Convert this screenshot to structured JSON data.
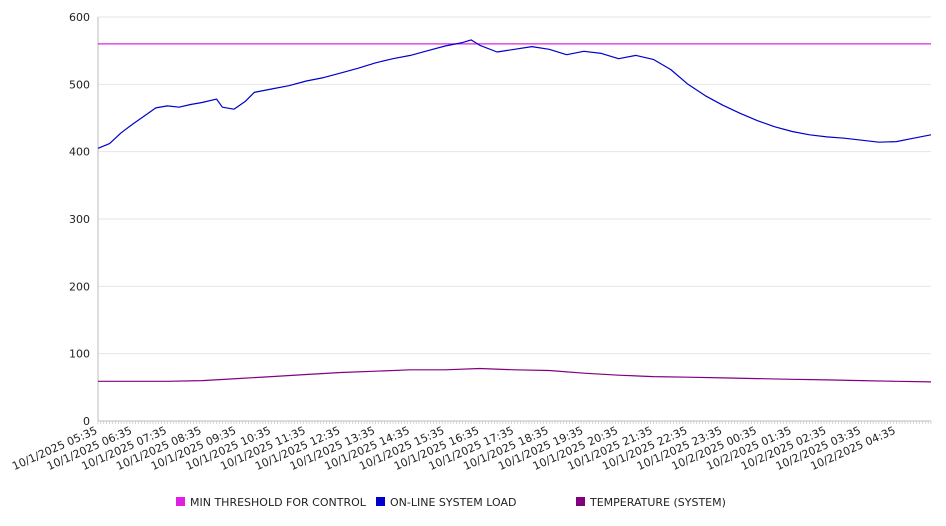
{
  "chart_data": {
    "type": "line",
    "title": "",
    "xlabel": "",
    "ylabel": "",
    "ylim": [
      0,
      600
    ],
    "yticks": [
      0,
      100,
      200,
      300,
      400,
      500,
      600
    ],
    "grid": true,
    "legend_position": "bottom",
    "x_tick_labels": [
      "10/1/2025 05:35",
      "10/1/2025 06:35",
      "10/1/2025 07:35",
      "10/1/2025 08:35",
      "10/1/2025 09:35",
      "10/1/2025 10:35",
      "10/1/2025 11:35",
      "10/1/2025 12:35",
      "10/1/2025 13:35",
      "10/1/2025 14:35",
      "10/1/2025 15:35",
      "10/1/2025 16:35",
      "10/1/2025 17:35",
      "10/1/2025 18:35",
      "10/1/2025 19:35",
      "10/1/2025 20:35",
      "10/1/2025 21:35",
      "10/1/2025 22:35",
      "10/1/2025 23:35",
      "10/2/2025 00:35",
      "10/2/2025 01:35",
      "10/2/2025 02:35",
      "10/2/2025 03:35",
      "10/2/2025 04:35"
    ],
    "x_range": [
      "10/1/2025 05:35",
      "10/2/2025 05:35"
    ],
    "series": [
      {
        "name": "MIN THRESHOLD FOR CONTROL",
        "color": "#e020e0",
        "points": [
          [
            "10/1/2025 05:35",
            560
          ],
          [
            "10/2/2025 05:35",
            560
          ]
        ]
      },
      {
        "name": "ON-LINE SYSTEM LOAD",
        "color": "#0000cc",
        "points": [
          [
            "10/1/2025 05:35",
            405
          ],
          [
            "10/1/2025 05:55",
            412
          ],
          [
            "10/1/2025 06:15",
            428
          ],
          [
            "10/1/2025 06:35",
            441
          ],
          [
            "10/1/2025 06:55",
            453
          ],
          [
            "10/1/2025 07:15",
            465
          ],
          [
            "10/1/2025 07:35",
            468
          ],
          [
            "10/1/2025 07:55",
            466
          ],
          [
            "10/1/2025 08:15",
            470
          ],
          [
            "10/1/2025 08:35",
            473
          ],
          [
            "10/1/2025 09:00",
            478
          ],
          [
            "10/1/2025 09:10",
            466
          ],
          [
            "10/1/2025 09:30",
            463
          ],
          [
            "10/1/2025 09:50",
            475
          ],
          [
            "10/1/2025 10:05",
            488
          ],
          [
            "10/1/2025 10:35",
            493
          ],
          [
            "10/1/2025 11:05",
            498
          ],
          [
            "10/1/2025 11:35",
            505
          ],
          [
            "10/1/2025 12:05",
            510
          ],
          [
            "10/1/2025 12:35",
            517
          ],
          [
            "10/1/2025 13:05",
            524
          ],
          [
            "10/1/2025 13:35",
            532
          ],
          [
            "10/1/2025 14:05",
            538
          ],
          [
            "10/1/2025 14:35",
            543
          ],
          [
            "10/1/2025 15:05",
            550
          ],
          [
            "10/1/2025 15:35",
            557
          ],
          [
            "10/1/2025 16:05",
            562
          ],
          [
            "10/1/2025 16:20",
            566
          ],
          [
            "10/1/2025 16:35",
            558
          ],
          [
            "10/1/2025 17:05",
            548
          ],
          [
            "10/1/2025 17:35",
            552
          ],
          [
            "10/1/2025 18:05",
            556
          ],
          [
            "10/1/2025 18:35",
            552
          ],
          [
            "10/1/2025 19:05",
            544
          ],
          [
            "10/1/2025 19:35",
            549
          ],
          [
            "10/1/2025 20:05",
            546
          ],
          [
            "10/1/2025 20:35",
            538
          ],
          [
            "10/1/2025 21:05",
            543
          ],
          [
            "10/1/2025 21:35",
            537
          ],
          [
            "10/1/2025 22:05",
            522
          ],
          [
            "10/1/2025 22:35",
            500
          ],
          [
            "10/1/2025 23:05",
            483
          ],
          [
            "10/1/2025 23:35",
            469
          ],
          [
            "10/2/2025 00:05",
            457
          ],
          [
            "10/2/2025 00:35",
            446
          ],
          [
            "10/2/2025 01:05",
            437
          ],
          [
            "10/2/2025 01:35",
            430
          ],
          [
            "10/2/2025 02:05",
            425
          ],
          [
            "10/2/2025 02:35",
            422
          ],
          [
            "10/2/2025 03:05",
            420
          ],
          [
            "10/2/2025 03:35",
            417
          ],
          [
            "10/2/2025 04:05",
            414
          ],
          [
            "10/2/2025 04:35",
            415
          ],
          [
            "10/2/2025 05:05",
            420
          ],
          [
            "10/2/2025 05:35",
            425
          ]
        ]
      },
      {
        "name": "TEMPERATURE (SYSTEM)",
        "color": "#800080",
        "points": [
          [
            "10/1/2025 05:35",
            59
          ],
          [
            "10/1/2025 07:35",
            59
          ],
          [
            "10/1/2025 08:35",
            60
          ],
          [
            "10/1/2025 09:35",
            63
          ],
          [
            "10/1/2025 10:35",
            66
          ],
          [
            "10/1/2025 11:35",
            69
          ],
          [
            "10/1/2025 12:35",
            72
          ],
          [
            "10/1/2025 13:35",
            74
          ],
          [
            "10/1/2025 14:35",
            76
          ],
          [
            "10/1/2025 15:35",
            76
          ],
          [
            "10/1/2025 16:35",
            78
          ],
          [
            "10/1/2025 17:35",
            76
          ],
          [
            "10/1/2025 18:35",
            75
          ],
          [
            "10/1/2025 19:35",
            71
          ],
          [
            "10/1/2025 20:35",
            68
          ],
          [
            "10/1/2025 21:35",
            66
          ],
          [
            "10/1/2025 22:35",
            65
          ],
          [
            "10/1/2025 23:35",
            64
          ],
          [
            "10/2/2025 00:35",
            63
          ],
          [
            "10/2/2025 01:35",
            62
          ],
          [
            "10/2/2025 02:35",
            61
          ],
          [
            "10/2/2025 03:35",
            60
          ],
          [
            "10/2/2025 04:35",
            59
          ],
          [
            "10/2/2025 05:35",
            58
          ]
        ]
      }
    ]
  }
}
